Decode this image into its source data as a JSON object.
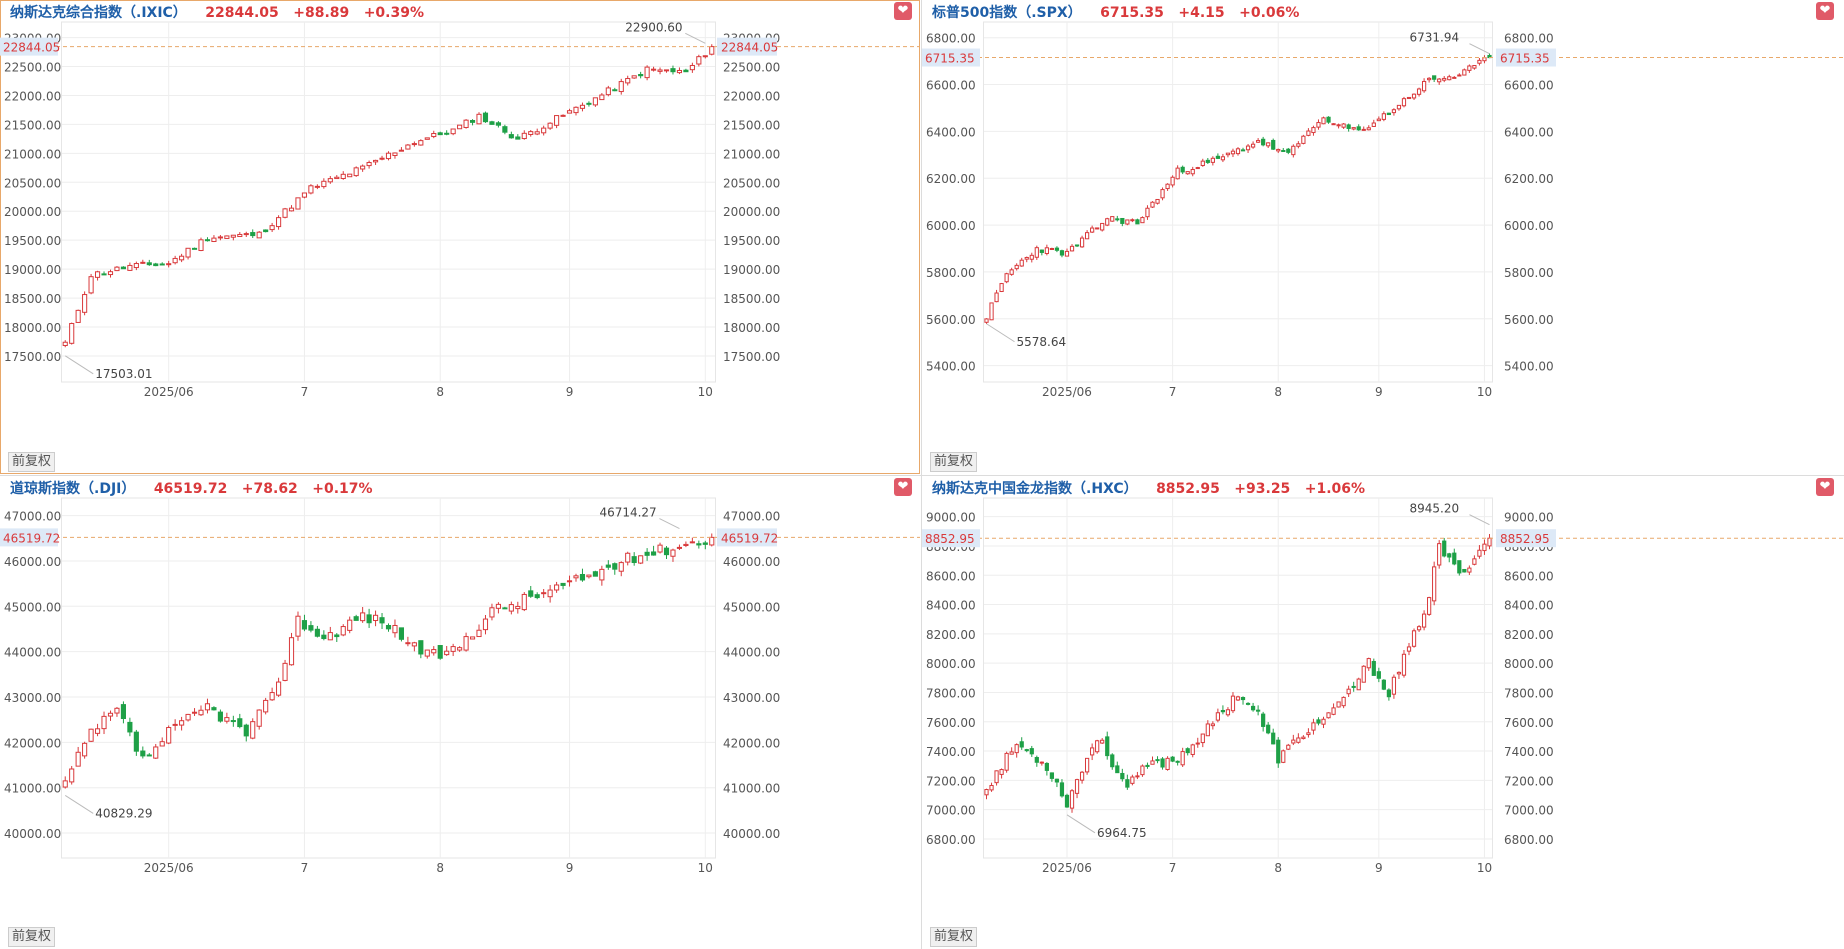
{
  "fq_label": "前复权",
  "panels": [
    {
      "id": "ixic",
      "header": {
        "name": "纳斯达克综合指数（.IXIC）",
        "value": "22844.05",
        "change": "+88.89",
        "pct": "+0.39%"
      },
      "active": true
    },
    {
      "id": "spx",
      "header": {
        "name": "标普500指数（.SPX）",
        "value": "6715.35",
        "change": "+4.15",
        "pct": "+0.06%"
      },
      "active": false
    },
    {
      "id": "dji",
      "header": {
        "name": "道琼斯指数（.DJI）",
        "value": "46519.72",
        "change": "+78.62",
        "pct": "+0.17%"
      },
      "active": false
    },
    {
      "id": "hxc",
      "header": {
        "name": "纳斯达克中国金龙指数（.HXC）",
        "value": "8852.95",
        "change": "+93.25",
        "pct": "+1.06%"
      },
      "active": false
    }
  ],
  "colors": {
    "up": "#d9393b",
    "down": "#1ea047",
    "header_name": "#1f5fa8",
    "last_price_line": "#e8a86a",
    "grid": "#eeeeee",
    "axis_text": "#555555"
  },
  "chart_data": [
    {
      "type": "candlestick",
      "title": "纳斯达克综合指数（.IXIC）",
      "x_tick_labels": [
        "2025/06",
        "7",
        "8",
        "9",
        "10"
      ],
      "y_tick_labels": [
        "17500.00",
        "18000.00",
        "18500.00",
        "19000.00",
        "19500.00",
        "20000.00",
        "20500.00",
        "21000.00",
        "21500.00",
        "22000.00",
        "22500.00",
        "23000.00"
      ],
      "ylim": [
        17050,
        23200
      ],
      "last_price": 22844.05,
      "last_price_label": "22844.05",
      "annotations": [
        {
          "label": "17503.01",
          "bar": 0,
          "value": 17503.01
        },
        {
          "label": "22900.60",
          "bar": 99,
          "value": 22900.6
        }
      ],
      "month_starts": {
        "2025/06": 16,
        "7": 37,
        "8": 58,
        "9": 78,
        "10": 99
      },
      "series_gen": {
        "start": 17720,
        "anchors": [
          [
            0,
            17720
          ],
          [
            4,
            18900
          ],
          [
            10,
            19050
          ],
          [
            16,
            19100
          ],
          [
            22,
            19550
          ],
          [
            30,
            19600
          ],
          [
            38,
            20400
          ],
          [
            46,
            20750
          ],
          [
            54,
            21200
          ],
          [
            60,
            21400
          ],
          [
            64,
            21650
          ],
          [
            70,
            21250
          ],
          [
            76,
            21600
          ],
          [
            82,
            21950
          ],
          [
            90,
            22450
          ],
          [
            96,
            22400
          ],
          [
            100,
            22844
          ]
        ],
        "seed": 11,
        "vol": 70
      }
    },
    {
      "type": "candlestick",
      "title": "标普500指数（.SPX）",
      "x_tick_labels": [
        "2025/06",
        "7",
        "8",
        "9",
        "10"
      ],
      "y_tick_labels": [
        "5400.00",
        "5600.00",
        "5800.00",
        "6000.00",
        "6200.00",
        "6400.00",
        "6600.00",
        "6800.00"
      ],
      "ylim": [
        5330,
        6850
      ],
      "last_price": 6715.35,
      "last_price_label": "6715.35",
      "annotations": [
        {
          "label": "5578.64",
          "bar": 0,
          "value": 5578.64
        },
        {
          "label": "6731.94",
          "bar": 100,
          "value": 6731.94
        }
      ],
      "month_starts": {
        "2025/06": 16,
        "7": 37,
        "8": 58,
        "9": 78,
        "10": 99
      },
      "series_gen": {
        "start": 5610,
        "anchors": [
          [
            0,
            5610
          ],
          [
            4,
            5790
          ],
          [
            10,
            5900
          ],
          [
            16,
            5880
          ],
          [
            24,
            6030
          ],
          [
            30,
            6010
          ],
          [
            38,
            6230
          ],
          [
            46,
            6280
          ],
          [
            54,
            6360
          ],
          [
            60,
            6300
          ],
          [
            66,
            6450
          ],
          [
            74,
            6400
          ],
          [
            80,
            6480
          ],
          [
            88,
            6620
          ],
          [
            94,
            6640
          ],
          [
            100,
            6715
          ]
        ],
        "seed": 23,
        "vol": 18
      }
    },
    {
      "type": "candlestick",
      "title": "道琼斯指数（.DJI）",
      "x_tick_labels": [
        "2025/06",
        "7",
        "8",
        "9",
        "10"
      ],
      "y_tick_labels": [
        "40000.00",
        "41000.00",
        "42000.00",
        "43000.00",
        "44000.00",
        "45000.00",
        "46000.00",
        "47000.00"
      ],
      "ylim": [
        39450,
        47300
      ],
      "last_price": 46519.72,
      "last_price_label": "46519.72",
      "annotations": [
        {
          "label": "40829.29",
          "bar": 0,
          "value": 40829.29
        },
        {
          "label": "46714.27",
          "bar": 95,
          "value": 46714.27
        }
      ],
      "month_starts": {
        "2025/06": 16,
        "7": 37,
        "8": 58,
        "9": 78,
        "10": 99
      },
      "series_gen": {
        "start": 41100,
        "anchors": [
          [
            0,
            41100
          ],
          [
            4,
            42200
          ],
          [
            8,
            42700
          ],
          [
            12,
            41600
          ],
          [
            16,
            42200
          ],
          [
            22,
            42800
          ],
          [
            28,
            42200
          ],
          [
            32,
            43000
          ],
          [
            36,
            44700
          ],
          [
            40,
            44300
          ],
          [
            46,
            44800
          ],
          [
            50,
            44600
          ],
          [
            56,
            43900
          ],
          [
            60,
            44000
          ],
          [
            66,
            44900
          ],
          [
            74,
            45300
          ],
          [
            80,
            45600
          ],
          [
            88,
            46100
          ],
          [
            94,
            46300
          ],
          [
            100,
            46520
          ]
        ],
        "seed": 37,
        "vol": 170
      }
    },
    {
      "type": "candlestick",
      "title": "纳斯达克中国金龙指数（.HXC）",
      "x_tick_labels": [
        "2025/06",
        "7",
        "8",
        "9",
        "10"
      ],
      "y_tick_labels": [
        "6800.00",
        "7000.00",
        "7200.00",
        "7400.00",
        "7600.00",
        "7800.00",
        "8000.00",
        "8200.00",
        "8400.00",
        "8600.00",
        "8800.00",
        "9000.00"
      ],
      "ylim": [
        6670,
        9100
      ],
      "last_price": 8852.95,
      "last_price_label": "8852.95",
      "annotations": [
        {
          "label": "6964.75",
          "bar": 16,
          "value": 6964.75
        },
        {
          "label": "8945.20",
          "bar": 100,
          "value": 8945.2
        }
      ],
      "month_starts": {
        "2025/06": 16,
        "7": 37,
        "8": 58,
        "9": 78,
        "10": 99
      },
      "series_gen": {
        "start": 7150,
        "anchors": [
          [
            0,
            7150
          ],
          [
            6,
            7450
          ],
          [
            12,
            7300
          ],
          [
            16,
            7050
          ],
          [
            22,
            7500
          ],
          [
            28,
            7150
          ],
          [
            32,
            7300
          ],
          [
            38,
            7350
          ],
          [
            44,
            7550
          ],
          [
            50,
            7800
          ],
          [
            54,
            7650
          ],
          [
            58,
            7350
          ],
          [
            64,
            7550
          ],
          [
            70,
            7700
          ],
          [
            76,
            8000
          ],
          [
            80,
            7800
          ],
          [
            84,
            8100
          ],
          [
            88,
            8450
          ],
          [
            90,
            8800
          ],
          [
            94,
            8600
          ],
          [
            100,
            8853
          ]
        ],
        "seed": 53,
        "vol": 45
      }
    }
  ]
}
